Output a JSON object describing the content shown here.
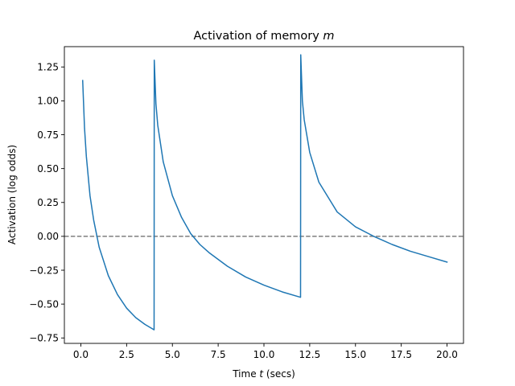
{
  "chart_data": {
    "type": "line",
    "title_prefix": "Activation of memory ",
    "title_var": "m",
    "xlabel_prefix": "Time ",
    "xlabel_var": "t",
    "xlabel_suffix": " (secs)",
    "ylabel": "Activation (log odds)",
    "xlim": [
      -0.9,
      20.9
    ],
    "ylim": [
      -0.79,
      1.4
    ],
    "xticks": [
      0.0,
      2.5,
      5.0,
      7.5,
      10.0,
      12.5,
      15.0,
      17.5,
      20.0
    ],
    "xtick_labels": [
      "0.0",
      "2.5",
      "5.0",
      "7.5",
      "10.0",
      "12.5",
      "15.0",
      "17.5",
      "20.0"
    ],
    "yticks": [
      -0.75,
      -0.5,
      -0.25,
      0.0,
      0.25,
      0.5,
      0.75,
      1.0,
      1.25
    ],
    "ytick_labels": [
      "−0.75",
      "−0.50",
      "−0.25",
      "0.00",
      "0.25",
      "0.50",
      "0.75",
      "1.00",
      "1.25"
    ],
    "grid": false,
    "series": [
      {
        "color": "#1f77b4",
        "x": [
          0.1,
          0.2,
          0.3,
          0.5,
          0.7,
          1.0,
          1.5,
          2.0,
          2.5,
          3.0,
          3.5,
          4.0,
          4.01,
          4.1,
          4.2,
          4.5,
          5.0,
          5.5,
          6.0,
          6.5,
          7.0,
          8.0,
          9.0,
          10.0,
          11.0,
          12.0,
          12.01,
          12.1,
          12.2,
          12.5,
          13.0,
          14.0,
          15.0,
          16.0,
          16.5,
          17.0,
          18.0,
          19.0,
          20.0
        ],
        "y": [
          1.15,
          0.8,
          0.59,
          0.3,
          0.12,
          -0.08,
          -0.29,
          -0.43,
          -0.53,
          -0.6,
          -0.65,
          -0.69,
          1.3,
          0.98,
          0.82,
          0.55,
          0.3,
          0.14,
          0.02,
          -0.06,
          -0.12,
          -0.22,
          -0.3,
          -0.36,
          -0.41,
          -0.45,
          1.34,
          1.0,
          0.86,
          0.62,
          0.4,
          0.18,
          0.07,
          0.0,
          -0.03,
          -0.06,
          -0.11,
          -0.15,
          -0.19
        ]
      }
    ],
    "reference_line": {
      "y": 0.0,
      "color": "#7f7f7f",
      "style": "dashed"
    }
  }
}
